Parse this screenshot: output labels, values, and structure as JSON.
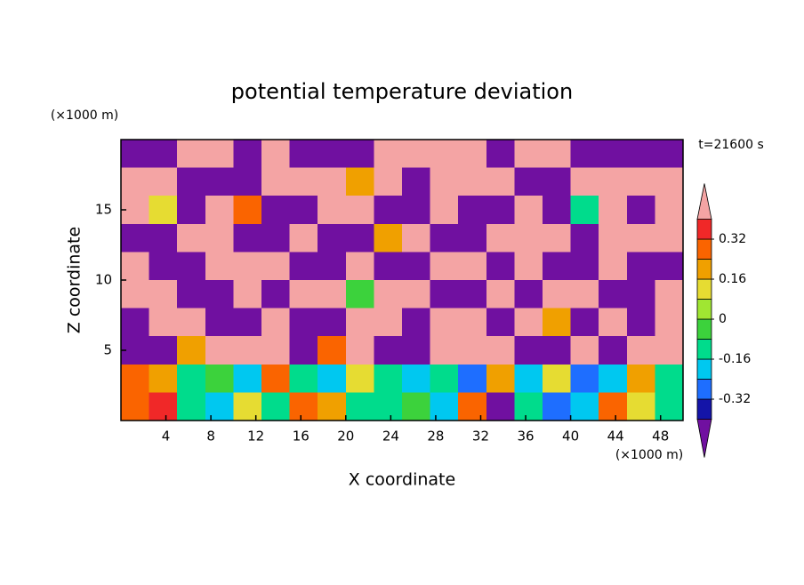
{
  "chart_data": {
    "type": "contour",
    "title": "potential temperature deviation",
    "y_unit": "(×1000 m)",
    "x_unit": "(×1000 m)",
    "time_label": "t=21600 s",
    "ylabel": "Z coordinate",
    "xlabel": "X coordinate",
    "xlim": [
      0,
      50
    ],
    "ylim": [
      0,
      20
    ],
    "xticks": [
      4,
      8,
      12,
      16,
      20,
      24,
      28,
      32,
      36,
      40,
      44,
      48
    ],
    "yticks": [
      5,
      10,
      15
    ],
    "x": [
      1.25,
      3.75,
      6.25,
      8.75,
      11.25,
      13.75,
      16.25,
      18.75,
      21.25,
      23.75,
      26.25,
      28.75,
      31.25,
      33.75,
      36.25,
      38.75,
      41.25,
      43.75,
      46.25,
      48.75
    ],
    "z": [
      19,
      17,
      15,
      13,
      11,
      9,
      7,
      5,
      3,
      1
    ],
    "values": [
      [
        -0.5,
        -0.5,
        0.5,
        0.5,
        -0.5,
        0.5,
        -0.5,
        -0.5,
        -0.5,
        0.5,
        0.5,
        0.5,
        0.5,
        -0.5,
        0.5,
        0.5,
        -0.5,
        -0.5,
        -0.5,
        -0.5
      ],
      [
        0.5,
        0.5,
        -0.5,
        -0.5,
        -0.5,
        0.5,
        0.5,
        0.5,
        0.2,
        0.5,
        -0.5,
        0.5,
        0.5,
        0.5,
        -0.5,
        -0.5,
        0.5,
        0.5,
        0.5,
        0.5
      ],
      [
        0.5,
        0.1,
        -0.5,
        0.5,
        0.3,
        -0.5,
        -0.5,
        0.5,
        0.5,
        -0.5,
        -0.5,
        0.5,
        -0.5,
        -0.5,
        0.5,
        -0.5,
        -0.1,
        0.5,
        -0.5,
        0.5
      ],
      [
        -0.5,
        -0.5,
        0.5,
        0.5,
        -0.5,
        -0.5,
        0.5,
        -0.5,
        -0.5,
        0.2,
        0.5,
        -0.5,
        -0.5,
        0.5,
        0.5,
        0.5,
        -0.5,
        0.5,
        0.5,
        0.5
      ],
      [
        0.5,
        -0.5,
        -0.5,
        0.5,
        0.5,
        0.5,
        -0.5,
        -0.5,
        0.5,
        -0.5,
        -0.5,
        0.5,
        0.5,
        -0.5,
        0.5,
        -0.5,
        -0.5,
        0.5,
        -0.5,
        -0.5
      ],
      [
        0.5,
        0.5,
        -0.5,
        -0.5,
        0.5,
        -0.5,
        0.5,
        0.5,
        0.0,
        0.5,
        0.5,
        -0.5,
        -0.5,
        0.5,
        -0.5,
        0.5,
        0.5,
        -0.5,
        -0.5,
        0.5
      ],
      [
        -0.5,
        0.5,
        0.5,
        -0.5,
        -0.5,
        0.5,
        -0.5,
        -0.5,
        0.5,
        0.5,
        -0.5,
        0.5,
        0.5,
        -0.5,
        0.5,
        0.2,
        -0.5,
        0.5,
        -0.5,
        0.5
      ],
      [
        -0.5,
        -0.5,
        0.2,
        0.5,
        0.5,
        0.5,
        -0.5,
        0.3,
        0.5,
        -0.5,
        -0.5,
        0.5,
        0.5,
        0.5,
        -0.5,
        -0.5,
        0.5,
        -0.5,
        0.5,
        0.5
      ],
      [
        0.3,
        0.2,
        -0.1,
        0.0,
        -0.2,
        0.3,
        -0.1,
        -0.2,
        0.1,
        -0.1,
        -0.2,
        -0.1,
        -0.3,
        0.2,
        -0.2,
        0.1,
        -0.3,
        -0.2,
        0.2,
        -0.1
      ],
      [
        0.3,
        0.4,
        -0.1,
        -0.2,
        0.1,
        -0.1,
        0.3,
        0.2,
        -0.1,
        -0.1,
        0.0,
        -0.2,
        0.3,
        -0.4,
        -0.1,
        -0.3,
        -0.2,
        0.3,
        0.1,
        -0.1
      ]
    ],
    "levels": [
      -0.4,
      -0.32,
      -0.24,
      -0.16,
      -0.08,
      0,
      0.08,
      0.16,
      0.24,
      0.32,
      0.4
    ],
    "colors": [
      "#7010a0",
      "#1414a8",
      "#1e6eff",
      "#00c8f0",
      "#00dc8c",
      "#3cd23c",
      "#a0e632",
      "#e6dc32",
      "#f0a000",
      "#fa6400",
      "#f02828",
      "#f4a4a4"
    ],
    "colorbar_ticks": [
      0.32,
      0.16,
      0,
      -0.16,
      -0.32
    ]
  }
}
